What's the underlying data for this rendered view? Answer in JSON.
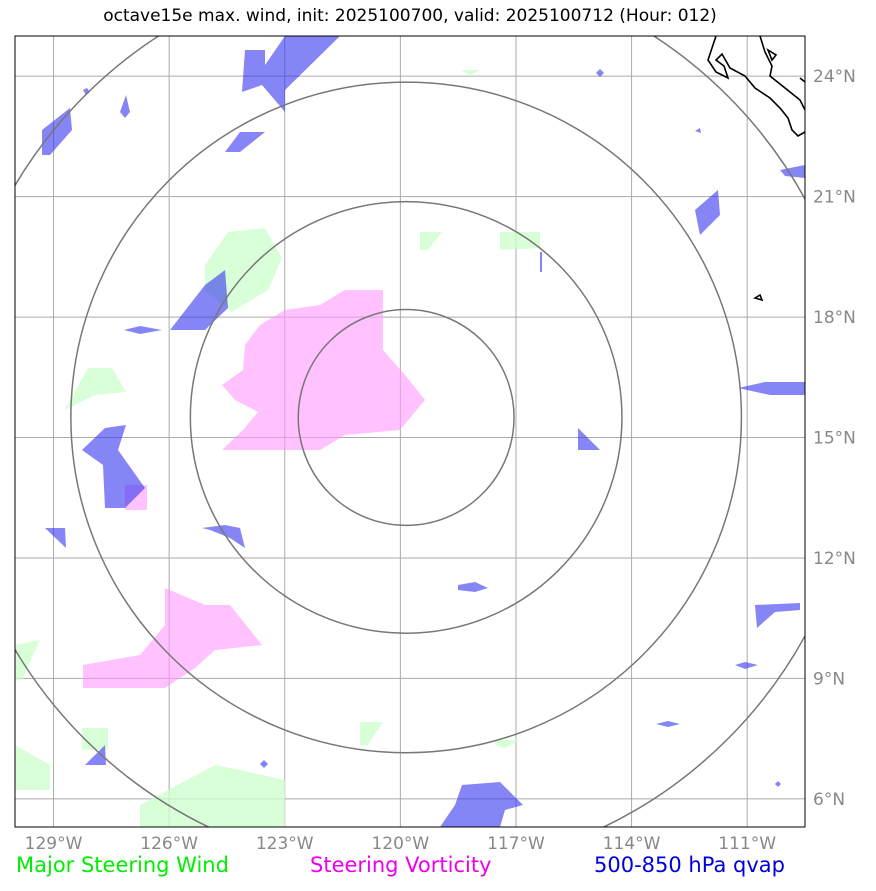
{
  "title": "octave15e max. wind, init: 2025100700, valid: 2025100712 (Hour: 012)",
  "map": {
    "lon_range": [
      -130,
      -109.5
    ],
    "lat_range": [
      5.3,
      25
    ],
    "lon_ticks": [
      {
        "value": -129,
        "label": "129°W"
      },
      {
        "value": -126,
        "label": "126°W"
      },
      {
        "value": -123,
        "label": "123°W"
      },
      {
        "value": -120,
        "label": "120°W"
      },
      {
        "value": -117,
        "label": "117°W"
      },
      {
        "value": -114,
        "label": "114°W"
      },
      {
        "value": -111,
        "label": "111°W"
      }
    ],
    "lat_ticks": [
      {
        "value": 24,
        "label": "24°N"
      },
      {
        "value": 21,
        "label": "21°N"
      },
      {
        "value": 18,
        "label": "18°N"
      },
      {
        "value": 15,
        "label": "15°N"
      },
      {
        "value": 12,
        "label": "12°N"
      },
      {
        "value": 9,
        "label": "9°N"
      },
      {
        "value": 6,
        "label": "6°N"
      }
    ],
    "grid": true,
    "range_rings_center": [
      -119.85,
      15.5
    ],
    "range_rings_radius_deg": [
      2.8,
      5.6,
      8.7,
      11.8
    ],
    "colors": {
      "wind": "#ccffcc",
      "vorticity": "#ff99ff",
      "qvap": "#3333ee",
      "ring": "#777777",
      "grid": "#aaaaaa",
      "coast": "#000000"
    }
  },
  "legend": {
    "wind": {
      "label": "Major Steering Wind",
      "color": "#00ee00"
    },
    "vorticity": {
      "label": "Steering Vorticity",
      "color": "#ee00ee"
    },
    "qvap": {
      "label": "500-850 hPa qvap",
      "color": "#0000dd"
    }
  }
}
